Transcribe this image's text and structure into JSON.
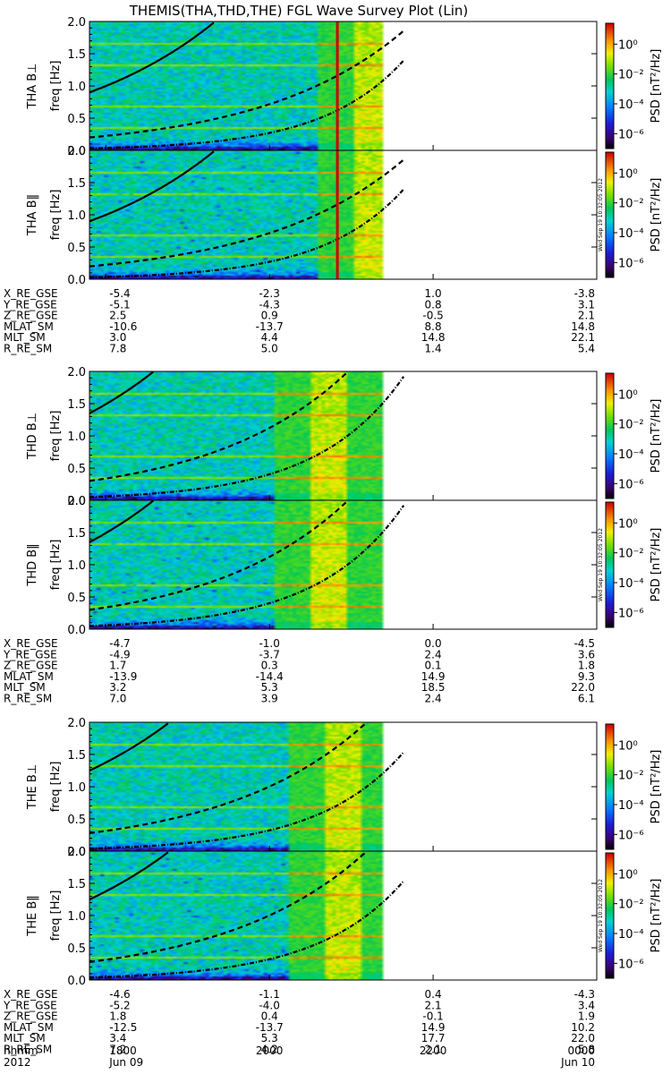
{
  "chart_data": {
    "type": "heatmap",
    "title": "THEMIS(THA,THD,THE) FGL Wave Survey Plot (Lin)",
    "y_axis": {
      "label_unit": "freq [Hz]",
      "ylim": [
        0.0,
        2.0
      ],
      "ticks": [
        "0.0",
        "0.5",
        "1.0",
        "1.5",
        "2.0"
      ]
    },
    "colorbar": {
      "label": "PSD [nT²/Hz]",
      "tick_labels": [
        "10⁰",
        "10⁻²",
        "10⁻⁴",
        "10⁻⁶"
      ],
      "tick_exponents": [
        0,
        -2,
        -4,
        -6
      ],
      "range_log10": [
        -7,
        1.4
      ],
      "stamp": "Wed Sep 19 10:32:05 2012"
    },
    "x_axis": {
      "row_label": "hhmm",
      "date_label": "2012",
      "date_left": "Jun 09",
      "date_right": "Jun 10",
      "ticks": [
        "1800",
        "2000",
        "2200",
        "0000"
      ],
      "hours": [
        18,
        20,
        22,
        24
      ],
      "range_hours": [
        17.8,
        24.0
      ]
    },
    "groups": [
      {
        "probe": "THA",
        "panels": [
          {
            "label": "THA B⊥",
            "stamp": false
          },
          {
            "label": "THA B‖",
            "stamp": true
          }
        ],
        "data_end_hour": 21.35,
        "burst_start_hour": 20.55,
        "red_marker_hour": 20.83,
        "ephemeris": [
          {
            "name": "X_RE_GSE",
            "values": [
              "-5.4",
              "-2.3",
              "1.0",
              "-3.8"
            ]
          },
          {
            "name": "Y_RE_GSE",
            "values": [
              "-5.1",
              "-4.3",
              "0.8",
              "3.1"
            ]
          },
          {
            "name": "Z_RE_GSE",
            "values": [
              "2.5",
              "0.9",
              "-0.5",
              "2.1"
            ]
          },
          {
            "name": "MLAT_SM",
            "values": [
              "-10.6",
              "-13.7",
              "8.8",
              "14.8"
            ]
          },
          {
            "name": "MLT_SM",
            "values": [
              "3.0",
              "4.4",
              "14.8",
              "22.1"
            ]
          },
          {
            "name": "R_RE_SM",
            "values": [
              "7.8",
              "5.0",
              "1.4",
              "5.4"
            ]
          }
        ]
      },
      {
        "probe": "THD",
        "panels": [
          {
            "label": "THD B⊥",
            "stamp": false
          },
          {
            "label": "THD B‖",
            "stamp": true
          }
        ],
        "data_end_hour": 21.35,
        "burst_start_hour": 20.05,
        "red_marker_hour": null,
        "ephemeris": [
          {
            "name": "X_RE_GSE",
            "values": [
              "-4.7",
              "-1.0",
              "0.0",
              "-4.5"
            ]
          },
          {
            "name": "Y_RE_GSE",
            "values": [
              "-4.9",
              "-3.7",
              "2.4",
              "3.6"
            ]
          },
          {
            "name": "Z_RE_GSE",
            "values": [
              "1.7",
              "0.3",
              "0.1",
              "1.8"
            ]
          },
          {
            "name": "MLAT_SM",
            "values": [
              "-13.9",
              "-14.4",
              "14.9",
              "9.3"
            ]
          },
          {
            "name": "MLT_SM",
            "values": [
              "3.2",
              "5.3",
              "18.5",
              "22.0"
            ]
          },
          {
            "name": "R_RE_SM",
            "values": [
              "7.0",
              "3.9",
              "2.4",
              "6.1"
            ]
          }
        ]
      },
      {
        "probe": "THE",
        "panels": [
          {
            "label": "THE B⊥",
            "stamp": false
          },
          {
            "label": "THE B‖",
            "stamp": true
          }
        ],
        "data_end_hour": 21.35,
        "burst_start_hour": 20.2,
        "red_marker_hour": null,
        "ephemeris": [
          {
            "name": "X_RE_GSE",
            "values": [
              "-4.6",
              "-1.1",
              "0.4",
              "-4.3"
            ]
          },
          {
            "name": "Y_RE_GSE",
            "values": [
              "-5.2",
              "-4.0",
              "2.1",
              "3.4"
            ]
          },
          {
            "name": "Z_RE_GSE",
            "values": [
              "1.8",
              "0.4",
              "-0.1",
              "1.9"
            ]
          },
          {
            "name": "MLAT_SM",
            "values": [
              "-12.5",
              "-13.7",
              "14.9",
              "10.2"
            ]
          },
          {
            "name": "MLT_SM",
            "values": [
              "3.4",
              "5.3",
              "17.7",
              "22.0"
            ]
          },
          {
            "name": "R_RE_SM",
            "values": [
              "7.2",
              "4.2",
              "2.1",
              "5.8"
            ]
          }
        ]
      }
    ]
  }
}
